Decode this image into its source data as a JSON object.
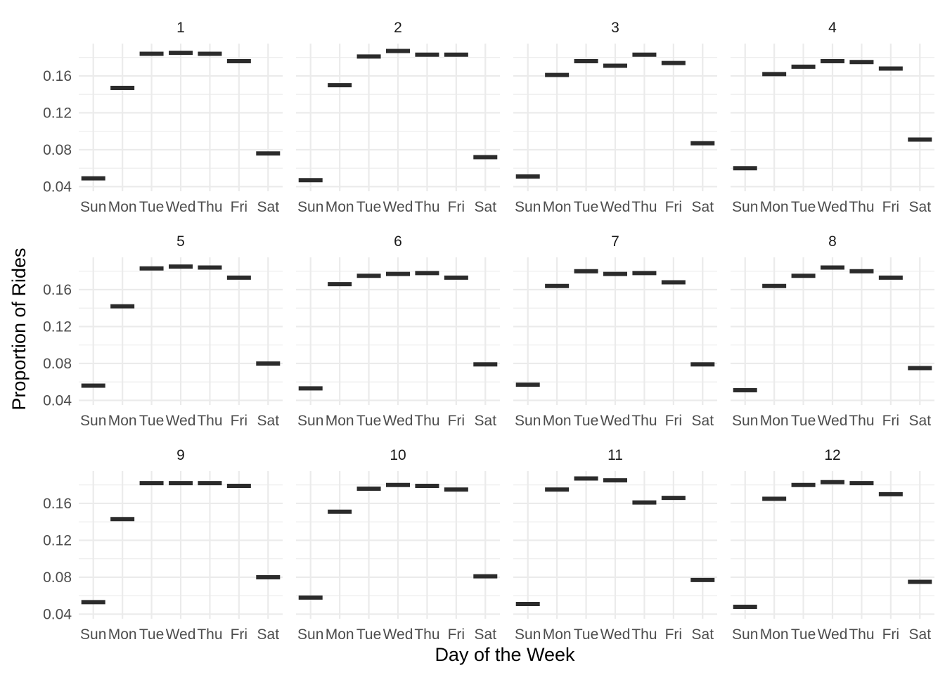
{
  "chart_data": {
    "type": "crossbar-facets",
    "xlabel": "Day of the Week",
    "ylabel": "Proportion of Rides",
    "categories": [
      "Sun",
      "Mon",
      "Tue",
      "Wed",
      "Thu",
      "Fri",
      "Sat"
    ],
    "y_ticks": [
      0.04,
      0.08,
      0.12,
      0.16
    ],
    "y_tick_labels": [
      "0.04",
      "0.08",
      "0.12",
      "0.16"
    ],
    "ylim": [
      0.035,
      0.195
    ],
    "grid": true,
    "facet_columns": 4,
    "facets": [
      {
        "label": "1",
        "values": [
          0.049,
          0.147,
          0.184,
          0.185,
          0.184,
          0.176,
          0.076
        ]
      },
      {
        "label": "2",
        "values": [
          0.047,
          0.15,
          0.181,
          0.187,
          0.183,
          0.183,
          0.072
        ]
      },
      {
        "label": "3",
        "values": [
          0.051,
          0.161,
          0.176,
          0.171,
          0.183,
          0.174,
          0.087
        ]
      },
      {
        "label": "4",
        "values": [
          0.06,
          0.162,
          0.17,
          0.176,
          0.175,
          0.168,
          0.091
        ]
      },
      {
        "label": "5",
        "values": [
          0.056,
          0.142,
          0.183,
          0.185,
          0.184,
          0.173,
          0.08
        ]
      },
      {
        "label": "6",
        "values": [
          0.053,
          0.166,
          0.175,
          0.177,
          0.178,
          0.173,
          0.079
        ]
      },
      {
        "label": "7",
        "values": [
          0.057,
          0.164,
          0.18,
          0.177,
          0.178,
          0.168,
          0.079
        ]
      },
      {
        "label": "8",
        "values": [
          0.051,
          0.164,
          0.175,
          0.184,
          0.18,
          0.173,
          0.075
        ]
      },
      {
        "label": "9",
        "values": [
          0.053,
          0.143,
          0.182,
          0.182,
          0.182,
          0.179,
          0.08
        ]
      },
      {
        "label": "10",
        "values": [
          0.058,
          0.151,
          0.176,
          0.18,
          0.179,
          0.175,
          0.081
        ]
      },
      {
        "label": "11",
        "values": [
          0.051,
          0.175,
          0.187,
          0.185,
          0.161,
          0.166,
          0.077
        ]
      },
      {
        "label": "12",
        "values": [
          0.048,
          0.165,
          0.18,
          0.183,
          0.182,
          0.17,
          0.075
        ]
      }
    ]
  }
}
